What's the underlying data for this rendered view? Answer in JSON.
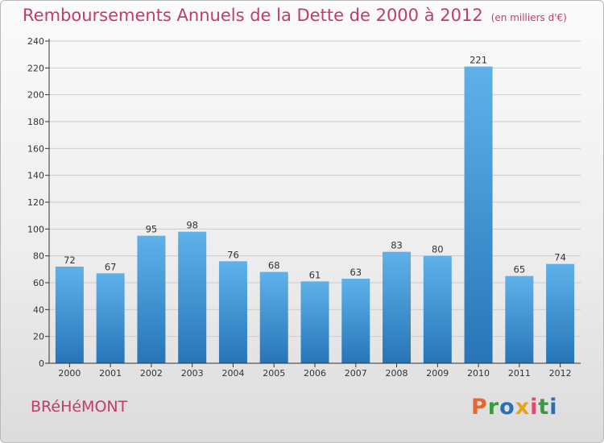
{
  "header": {
    "title": "Remboursements Annuels de la Dette de 2000 à 2012",
    "unit": "(en milliers d'€)"
  },
  "footer": {
    "town": "BRéHéMONT",
    "brand": "Proxiti",
    "brand_colors": [
      "#e8662f",
      "#3a9a3f",
      "#2d6fb4",
      "#e8a21a",
      "#e34a6f",
      "#3a9a3f",
      "#2d6fb4"
    ]
  },
  "colors": {
    "title": "#c23a6e",
    "bar_top": "#5fb1ea",
    "bar_bottom": "#2775b8",
    "grid": "#cccccc",
    "axis": "#333333"
  },
  "chart_data": {
    "type": "bar",
    "categories": [
      "2000",
      "2001",
      "2002",
      "2003",
      "2004",
      "2005",
      "2006",
      "2007",
      "2008",
      "2009",
      "2010",
      "2011",
      "2012"
    ],
    "values": [
      72,
      67,
      95,
      98,
      76,
      68,
      61,
      63,
      83,
      80,
      221,
      65,
      74
    ],
    "ylim": [
      0,
      240
    ],
    "yticks": [
      0,
      20,
      40,
      60,
      80,
      100,
      120,
      140,
      160,
      180,
      200,
      220,
      240
    ],
    "grid": true,
    "data_labels": true
  }
}
